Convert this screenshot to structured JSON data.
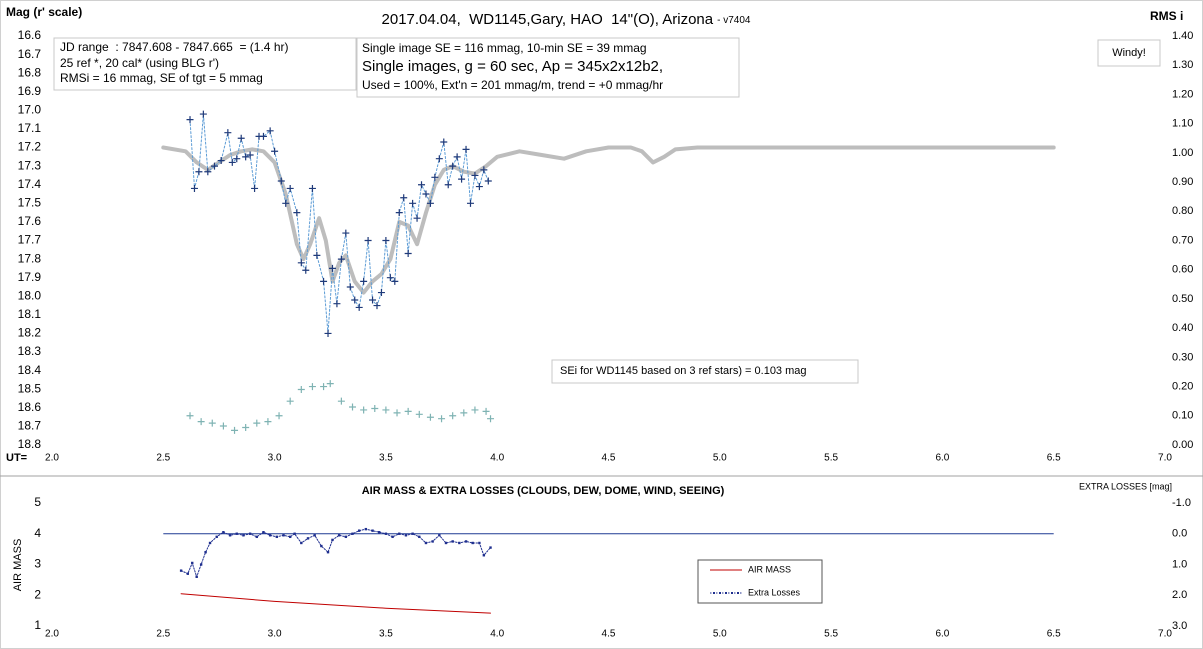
{
  "chart_data": [
    {
      "type": "line",
      "title": "2017.04.04,  WD1145,Gary, HAO  14\"(O), Arizona",
      "subtitle": "- v7404",
      "ylabel": "Mag (r' scale)",
      "y2label": "RMS i",
      "xlabel": "UT=",
      "xlim": [
        2.0,
        7.0
      ],
      "xticks": [
        {
          "value": 2,
          "label": "2.0"
        },
        2.5,
        {
          "value": 3,
          "label": "3.0"
        },
        3.5,
        {
          "value": 4,
          "label": "4.0"
        },
        4.5,
        {
          "value": 5,
          "label": "5.0"
        },
        5.5,
        {
          "value": 6,
          "label": "6.0"
        },
        6.5,
        {
          "value": 7,
          "label": "7.0"
        }
      ],
      "ylim": [
        18.8,
        16.6
      ],
      "yticks": [
        16.6,
        16.7,
        16.8,
        16.9,
        {
          "value": 17,
          "label": "17.0"
        },
        17.1,
        17.2,
        17.3,
        17.4,
        17.5,
        17.6,
        17.7,
        17.8,
        17.9,
        {
          "value": 18,
          "label": "18.0"
        },
        18.1,
        18.2,
        18.3,
        18.4,
        18.5,
        18.6,
        18.7,
        18.8
      ],
      "y2lim": [
        0,
        1.4
      ],
      "y2ticks": [
        {
          "value": 0,
          "label": "0.00"
        },
        {
          "value": 0.1,
          "label": "0.10"
        },
        {
          "value": 0.2,
          "label": "0.20"
        },
        {
          "value": 0.3,
          "label": "0.30"
        },
        {
          "value": 0.4,
          "label": "0.40"
        },
        {
          "value": 0.5,
          "label": "0.50"
        },
        {
          "value": 0.6,
          "label": "0.60"
        },
        {
          "value": 0.7,
          "label": "0.70"
        },
        {
          "value": 0.8,
          "label": "0.80"
        },
        {
          "value": 0.9,
          "label": "0.90"
        },
        {
          "value": 1,
          "label": "1.00"
        },
        {
          "value": 1.1,
          "label": "1.10"
        },
        {
          "value": 1.2,
          "label": "1.20"
        },
        {
          "value": 1.3,
          "label": "1.30"
        },
        {
          "value": 1.4,
          "label": "1.40"
        }
      ],
      "grid": false,
      "series": [
        {
          "color": "#bdbdbd",
          "line": "solid",
          "line_width": 4,
          "marker": "none",
          "x": [
            2.5,
            2.6,
            2.65,
            2.7,
            2.75,
            2.8,
            2.85,
            2.9,
            2.95,
            3.0,
            3.05,
            3.1,
            3.13,
            3.16,
            3.2,
            3.23,
            3.26,
            3.29,
            3.32,
            3.36,
            3.4,
            3.44,
            3.48,
            3.52,
            3.56,
            3.6,
            3.64,
            3.68,
            3.72,
            3.76,
            3.8,
            3.85,
            3.9,
            3.95,
            4.0,
            4.1,
            4.2,
            4.3,
            4.4,
            4.5,
            4.6,
            4.65,
            4.7,
            4.75,
            4.8,
            4.9,
            5.0,
            6.5
          ],
          "values": [
            17.2,
            17.22,
            17.28,
            17.32,
            17.28,
            17.24,
            17.22,
            17.21,
            17.22,
            17.28,
            17.45,
            17.72,
            17.8,
            17.72,
            17.58,
            17.7,
            17.92,
            17.82,
            17.78,
            17.92,
            17.98,
            17.92,
            17.88,
            17.8,
            17.6,
            17.62,
            17.72,
            17.55,
            17.4,
            17.32,
            17.3,
            17.33,
            17.34,
            17.3,
            17.25,
            17.22,
            17.24,
            17.26,
            17.22,
            17.2,
            17.2,
            17.22,
            17.28,
            17.25,
            17.21,
            17.2,
            17.2,
            17.2
          ]
        },
        {
          "color": "#1f3a7a",
          "line_color": "#5b9bd5",
          "line": "dashed",
          "line_width": 1,
          "marker": "plus",
          "x": [
            2.62,
            2.64,
            2.66,
            2.68,
            2.7,
            2.73,
            2.76,
            2.79,
            2.81,
            2.83,
            2.85,
            2.87,
            2.89,
            2.91,
            2.93,
            2.95,
            2.98,
            3.0,
            3.03,
            3.05,
            3.07,
            3.1,
            3.12,
            3.14,
            3.17,
            3.19,
            3.22,
            3.24,
            3.26,
            3.28,
            3.3,
            3.32,
            3.34,
            3.36,
            3.38,
            3.4,
            3.42,
            3.44,
            3.46,
            3.48,
            3.5,
            3.52,
            3.54,
            3.56,
            3.58,
            3.6,
            3.62,
            3.64,
            3.66,
            3.68,
            3.7,
            3.72,
            3.74,
            3.76,
            3.78,
            3.8,
            3.82,
            3.84,
            3.86,
            3.88,
            3.9,
            3.92,
            3.94,
            3.96
          ],
          "values": [
            17.05,
            17.42,
            17.33,
            17.02,
            17.33,
            17.3,
            17.27,
            17.12,
            17.28,
            17.26,
            17.15,
            17.25,
            17.24,
            17.42,
            17.14,
            17.14,
            17.11,
            17.22,
            17.38,
            17.5,
            17.42,
            17.55,
            17.82,
            17.86,
            17.42,
            17.78,
            17.92,
            18.2,
            17.85,
            18.04,
            17.8,
            17.66,
            17.95,
            18.02,
            18.06,
            17.92,
            17.7,
            18.02,
            18.05,
            17.98,
            17.7,
            17.9,
            17.92,
            17.55,
            17.47,
            17.77,
            17.5,
            17.58,
            17.4,
            17.45,
            17.5,
            17.36,
            17.26,
            17.17,
            17.4,
            17.3,
            17.25,
            17.37,
            17.21,
            17.5,
            17.35,
            17.41,
            17.32,
            17.38
          ]
        },
        {
          "color": "#7fb3b3",
          "line": "none",
          "marker": "plus",
          "axis": "y2",
          "x": [
            2.62,
            2.67,
            2.72,
            2.77,
            2.82,
            2.87,
            2.92,
            2.97,
            3.02,
            3.07,
            3.12,
            3.17,
            3.22,
            3.25,
            3.3,
            3.35,
            3.4,
            3.45,
            3.5,
            3.55,
            3.6,
            3.65,
            3.7,
            3.75,
            3.8,
            3.85,
            3.9,
            3.95,
            3.97
          ],
          "values": [
            0.1,
            0.08,
            0.075,
            0.065,
            0.05,
            0.06,
            0.075,
            0.08,
            0.1,
            0.15,
            0.19,
            0.2,
            0.2,
            0.21,
            0.15,
            0.13,
            0.12,
            0.125,
            0.12,
            0.11,
            0.115,
            0.105,
            0.095,
            0.09,
            0.1,
            0.11,
            0.12,
            0.115,
            0.09
          ]
        }
      ],
      "annotations": [
        {
          "lines": [
            "JD range  : 7847.608 - 7847.665  = (1.4 hr)",
            "25 ref *, 20 cal* (using BLG r')",
            "RMSi = 16 mmag, SE of tgt = 5 mmag"
          ]
        },
        {
          "lines": [
            "Single image SE = 116 mmag, 10-min SE = 39 mmag",
            "Single images, g = 60 sec, Ap = 345x2x12b2,",
            "Used = 100%, Ext'n = 201 mmag/m, trend = +0 mmag/hr"
          ]
        },
        {
          "lines": [
            "Windy!"
          ]
        },
        {
          "lines": [
            "SEi for WD1145 based on 3 ref stars) = 0.103 mag"
          ]
        }
      ]
    },
    {
      "type": "line",
      "title": "AIR MASS & EXTRA LOSSES (CLOUDS, DEW, DOME, WIND, SEEING)",
      "ylabel": "AIR MASS",
      "y2label": "EXTRA LOSSES [mag]",
      "xlim": [
        2.0,
        7.0
      ],
      "xticks": [
        {
          "value": 2,
          "label": "2.0"
        },
        2.5,
        {
          "value": 3,
          "label": "3.0"
        },
        3.5,
        {
          "value": 4,
          "label": "4.0"
        },
        4.5,
        {
          "value": 5,
          "label": "5.0"
        },
        5.5,
        {
          "value": 6,
          "label": "6.0"
        },
        6.5,
        {
          "value": 7,
          "label": "7.0"
        }
      ],
      "ylim": [
        1,
        5
      ],
      "yticks": [
        1,
        2,
        3,
        4,
        5
      ],
      "y2lim": [
        3,
        -1
      ],
      "y2ticks": [
        {
          "value": -1,
          "label": "-1.0"
        },
        {
          "value": 0,
          "label": "0.0"
        },
        {
          "value": 1,
          "label": "1.0"
        },
        {
          "value": 2,
          "label": "2.0"
        },
        {
          "value": 3,
          "label": "3.0"
        }
      ],
      "legend": "center",
      "reference_line": {
        "axis": "y2",
        "value": 0,
        "x": [
          2.5,
          6.5
        ],
        "color": "#1f3a93"
      },
      "series": [
        {
          "name": "AIR MASS",
          "color": "#c00000",
          "line": "solid",
          "line_width": 1,
          "marker": "none",
          "x": [
            2.58,
            3.0,
            3.5,
            3.97
          ],
          "values": [
            2.05,
            1.8,
            1.58,
            1.42
          ]
        },
        {
          "name": "Extra Losses",
          "color": "#1f2f8f",
          "line": "dotted",
          "line_width": 1,
          "marker": "dot",
          "axis": "y2",
          "x": [
            2.58,
            2.61,
            2.63,
            2.65,
            2.67,
            2.69,
            2.71,
            2.74,
            2.77,
            2.8,
            2.83,
            2.86,
            2.89,
            2.92,
            2.95,
            2.98,
            3.01,
            3.04,
            3.07,
            3.09,
            3.12,
            3.15,
            3.18,
            3.21,
            3.24,
            3.26,
            3.29,
            3.32,
            3.35,
            3.38,
            3.41,
            3.44,
            3.47,
            3.5,
            3.53,
            3.56,
            3.59,
            3.62,
            3.65,
            3.68,
            3.71,
            3.74,
            3.77,
            3.8,
            3.83,
            3.86,
            3.89,
            3.92,
            3.94,
            3.97
          ],
          "values": [
            1.2,
            1.3,
            0.95,
            1.4,
            1.0,
            0.6,
            0.3,
            0.1,
            -0.05,
            0.05,
            0.0,
            0.05,
            0.0,
            0.1,
            -0.05,
            0.05,
            0.1,
            0.05,
            0.1,
            0.0,
            0.3,
            0.15,
            0.05,
            0.4,
            0.6,
            0.2,
            0.05,
            0.1,
            0.0,
            -0.1,
            -0.15,
            -0.1,
            -0.05,
            0.0,
            0.1,
            0.0,
            0.05,
            0.0,
            0.1,
            0.3,
            0.25,
            0.05,
            0.3,
            0.25,
            0.3,
            0.25,
            0.3,
            0.3,
            0.7,
            0.45
          ]
        }
      ]
    }
  ]
}
